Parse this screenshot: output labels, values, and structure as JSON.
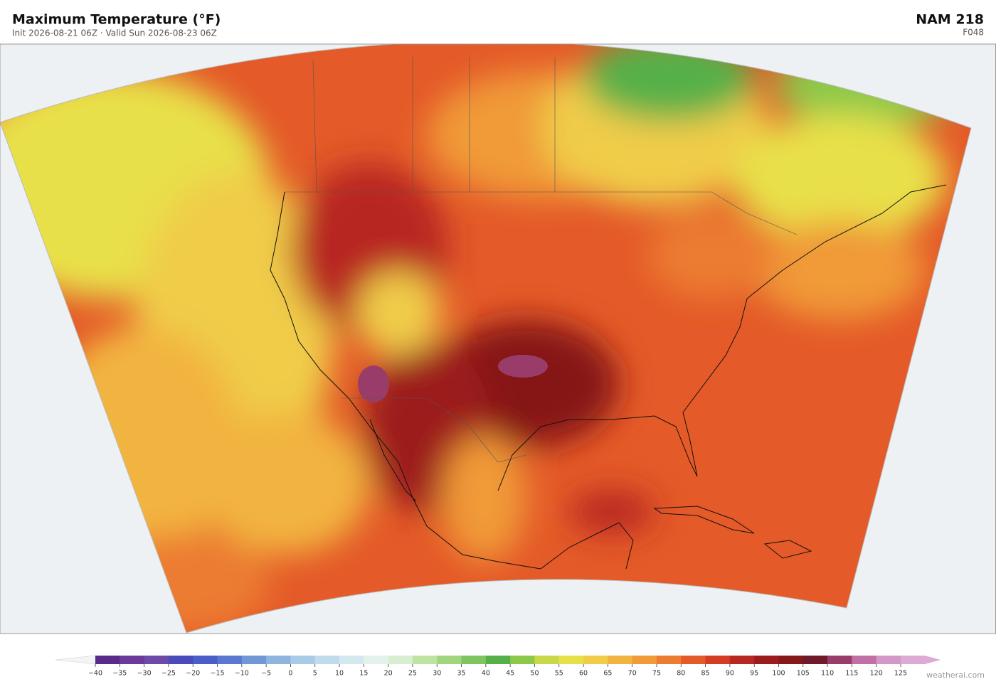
{
  "header": {
    "title": "Maximum Temperature  (°F)",
    "subtitle": "Init 2026-08-21 06Z  ·  Valid Sun 2026-08-23 06Z",
    "model": "NAM  218",
    "forecast_hour": "F048"
  },
  "colorbar": {
    "ticks": [
      {
        "value": -40,
        "label": "−40"
      },
      {
        "value": -35,
        "label": "−35"
      },
      {
        "value": -30,
        "label": "−30"
      },
      {
        "value": -25,
        "label": "−25"
      },
      {
        "value": -20,
        "label": "−20"
      },
      {
        "value": -15,
        "label": "−15"
      },
      {
        "value": -10,
        "label": "−10"
      },
      {
        "value": -5,
        "label": "−5"
      },
      0,
      5,
      10,
      15,
      20,
      25,
      30,
      35,
      40,
      45,
      50,
      55,
      60,
      65,
      70,
      75,
      80,
      85,
      90,
      95,
      100,
      105,
      110,
      115,
      120,
      125
    ],
    "colors": [
      "#5a2a8a",
      "#6b3a9a",
      "#6e4aa8",
      "#4a4aba",
      "#4a5ec8",
      "#5a78d0",
      "#7098d6",
      "#8eb4e0",
      "#a8cce8",
      "#c0dcec",
      "#d4e8ef",
      "#e4f2ec",
      "#d8eed0",
      "#bfe3a0",
      "#a2d67e",
      "#7fc55f",
      "#56b04a",
      "#8cc84a",
      "#c8d84a",
      "#e8e04a",
      "#f0cc48",
      "#f2b440",
      "#f09a38",
      "#ec7c30",
      "#e45a28",
      "#d43c24",
      "#b82820",
      "#9c1c1c",
      "#861818",
      "#6e1a2a",
      "#9a3c6a",
      "#c070a4",
      "#d498c8"
    ],
    "under_color": "#f4f4f6",
    "over_color": "#dcaad4"
  },
  "watermark": "weatherai.com"
}
